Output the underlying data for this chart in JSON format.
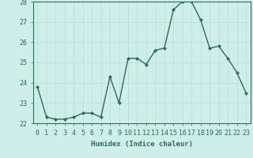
{
  "x": [
    0,
    1,
    2,
    3,
    4,
    5,
    6,
    7,
    8,
    9,
    10,
    11,
    12,
    13,
    14,
    15,
    16,
    17,
    18,
    19,
    20,
    21,
    22,
    23
  ],
  "y": [
    23.8,
    22.3,
    22.2,
    22.2,
    22.3,
    22.5,
    22.5,
    22.3,
    24.3,
    23.0,
    25.2,
    25.2,
    24.9,
    25.6,
    25.7,
    27.6,
    28.0,
    28.0,
    27.1,
    25.7,
    25.8,
    25.2,
    24.5,
    23.5
  ],
  "ylim": [
    22,
    28
  ],
  "yticks": [
    22,
    23,
    24,
    25,
    26,
    27,
    28
  ],
  "xlabel": "Humidex (Indice chaleur)",
  "line_color": "#2e6b5e",
  "marker_color": "#2e6b5e",
  "bg_color": "#cdeee9",
  "grid_color_major": "#b8ddd8",
  "grid_color_minor": "#c8eae5",
  "axis_color": "#2e6b5e",
  "xlabel_fontsize": 6.5,
  "tick_fontsize": 6,
  "marker": "D",
  "marker_size": 2.0,
  "line_width": 1.0
}
